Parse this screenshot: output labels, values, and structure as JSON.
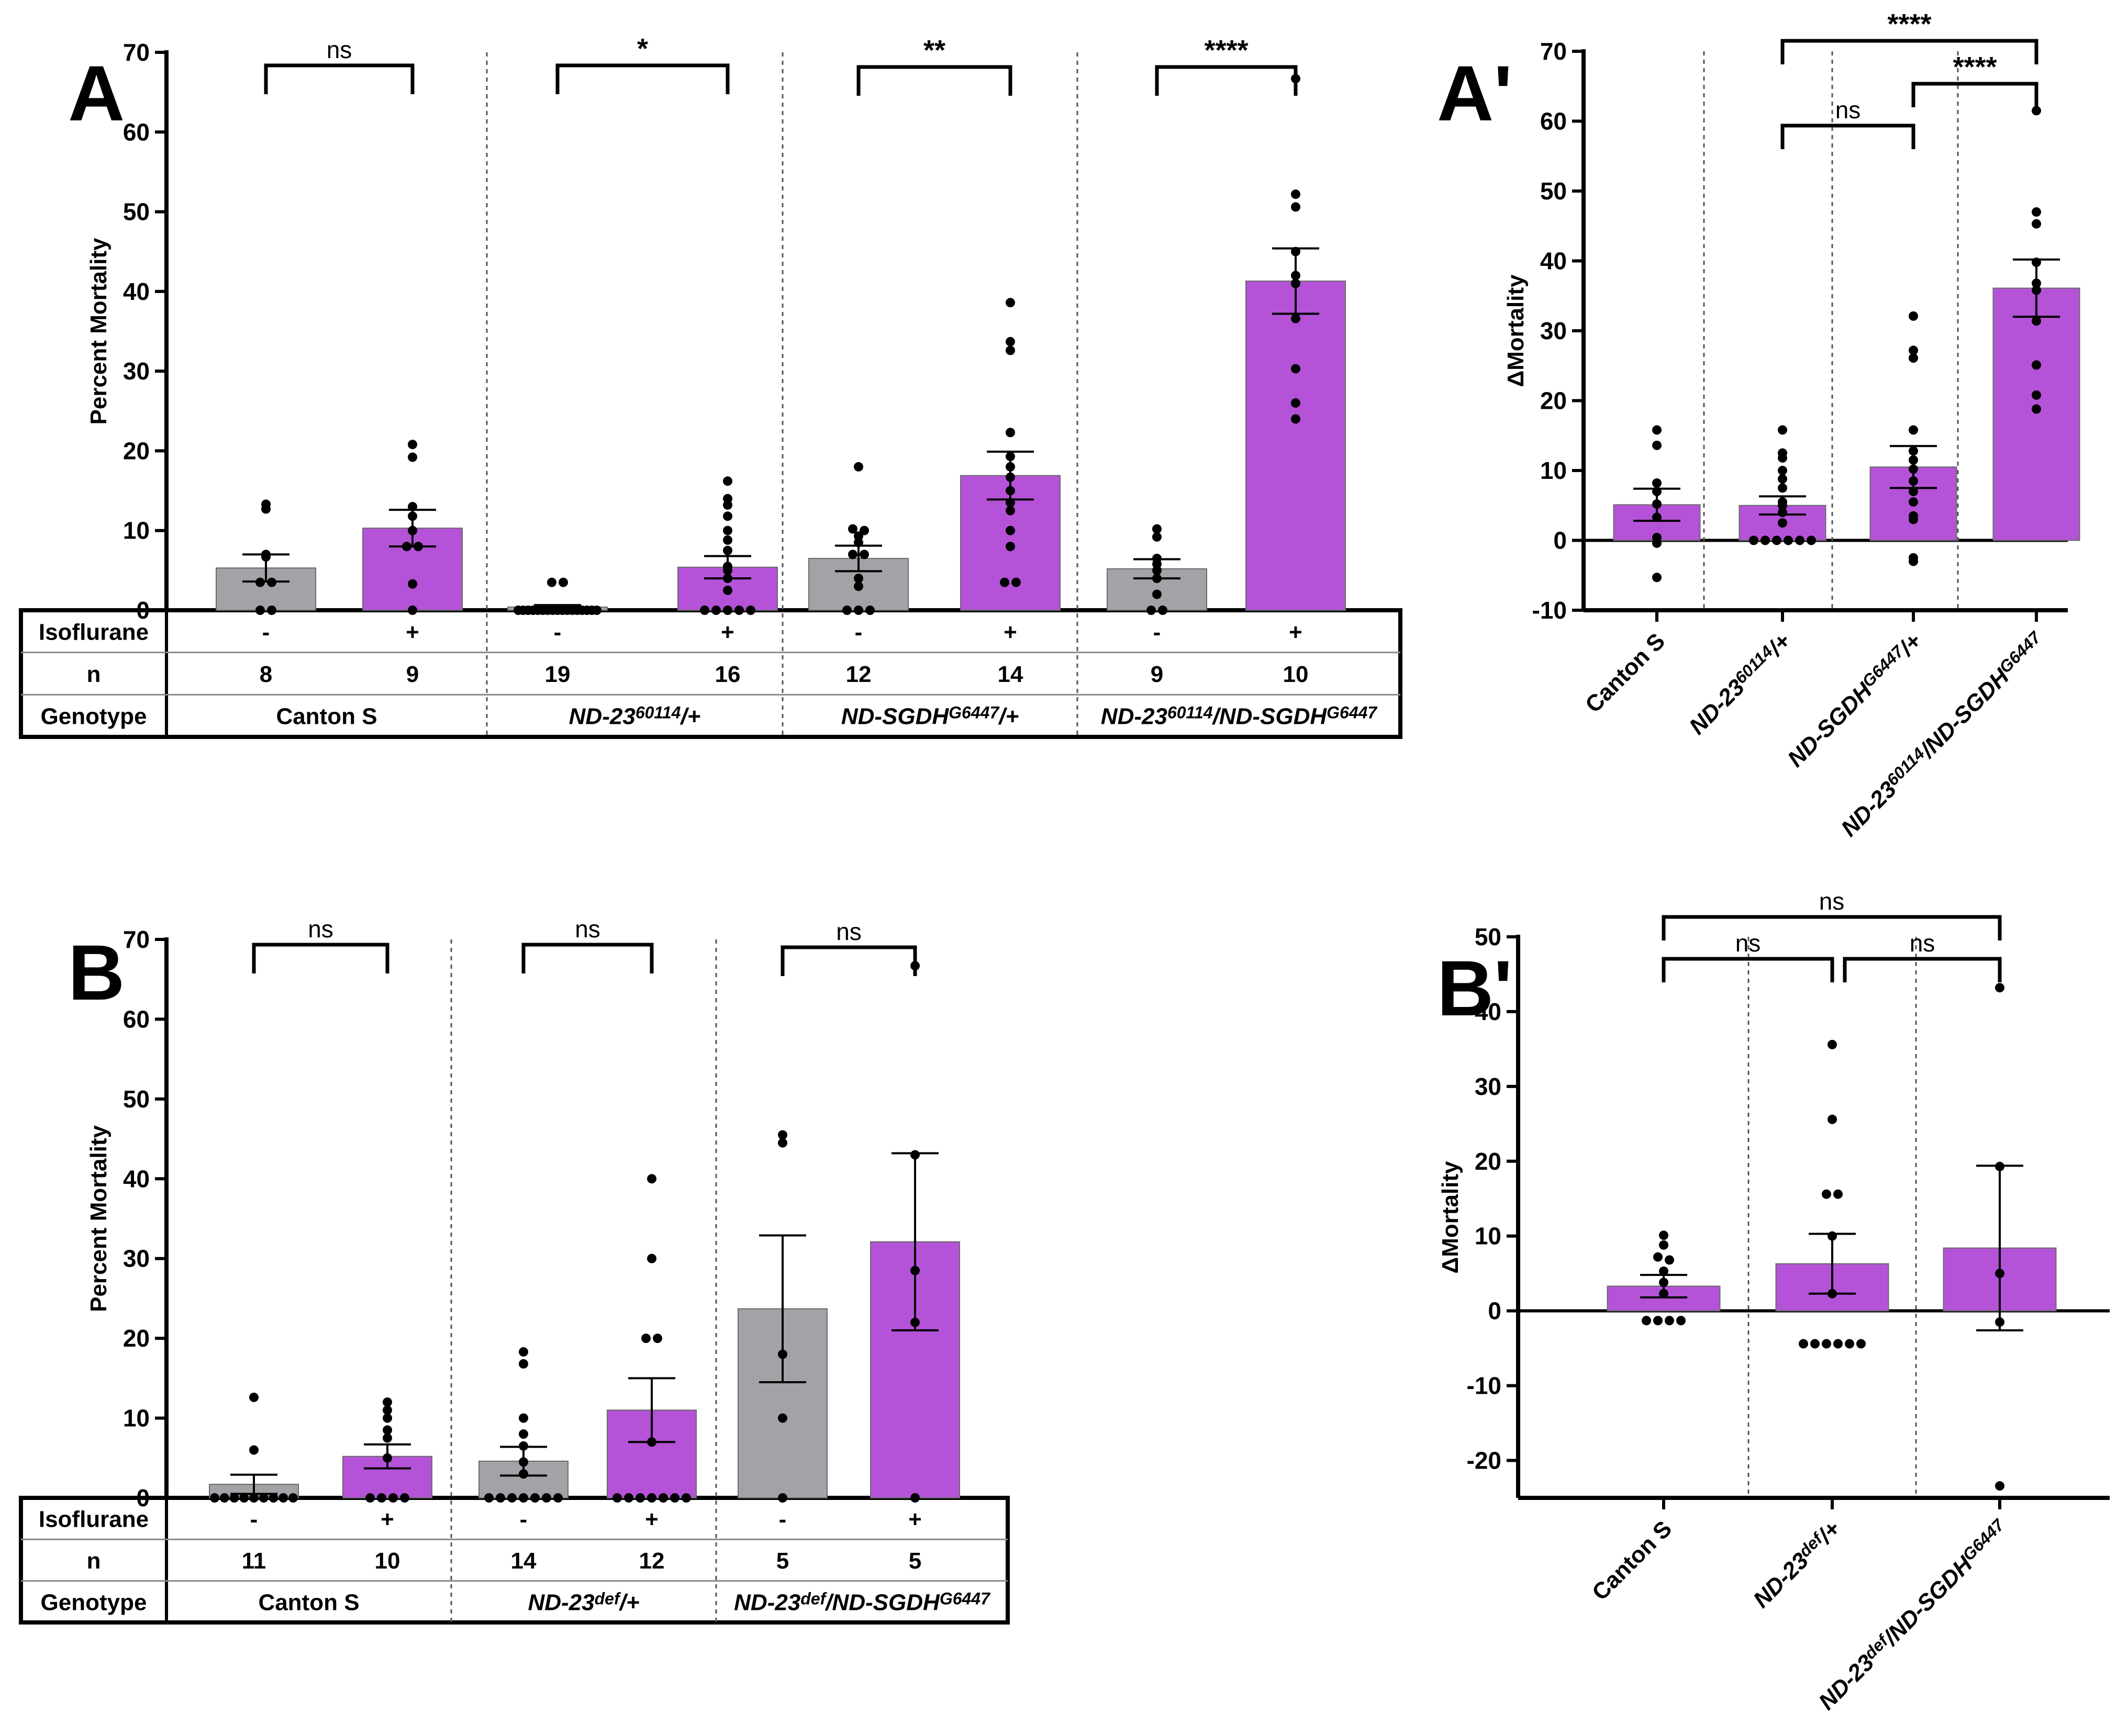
{
  "colors": {
    "control": "#a3a3a7",
    "isoflurane": "#b553d8",
    "axis": "#000000",
    "divider": "#555555"
  },
  "chart_data": [
    {
      "id": "A",
      "panel_label": "A",
      "type": "bar",
      "ylabel": "Percent Mortality",
      "ylim": [
        0,
        70
      ],
      "yticks": [
        0,
        10,
        20,
        30,
        40,
        50,
        60,
        70
      ],
      "table_labels": {
        "iso": "Isoflurane",
        "n": "n",
        "genotype": "Genotype"
      },
      "groups": [
        {
          "genotype": {
            "base": "Canton S",
            "sup": "",
            "mid": "",
            "sup2": "",
            "tail": ""
          },
          "bars": [
            {
              "iso": "-",
              "n": "8",
              "value": 5.3,
              "sem": 1.7,
              "points": [
                13.3,
                12.7,
                7.0,
                6.7,
                3.5,
                3.5,
                0,
                0
              ]
            },
            {
              "iso": "+",
              "n": "9",
              "value": 10.3,
              "sem": 2.3,
              "points": [
                20.8,
                19.2,
                13.0,
                11.8,
                10.0,
                8.0,
                8.0,
                3.3,
                0
              ]
            }
          ],
          "sig": {
            "label": "ns",
            "pair": [
              0,
              1
            ]
          }
        },
        {
          "genotype": {
            "base": "ND-23",
            "sup": "60114",
            "mid": "/+",
            "sup2": "",
            "tail": ""
          },
          "bars": [
            {
              "iso": "-",
              "n": "19",
              "value": 0.4,
              "sem": 0.25,
              "points": [
                3.5,
                3.5,
                0,
                0,
                0,
                0,
                0,
                0,
                0,
                0,
                0,
                0,
                0,
                0,
                0,
                0,
                0,
                0,
                0
              ]
            },
            {
              "iso": "+",
              "n": "16",
              "value": 5.4,
              "sem": 1.4,
              "points": [
                16.2,
                14.0,
                13.2,
                11.8,
                10.0,
                8.8,
                7.5,
                5.5,
                5.0,
                4.0,
                2.5,
                0,
                0,
                0,
                0,
                0
              ]
            }
          ],
          "sig": {
            "label": "*",
            "pair": [
              0,
              1
            ]
          }
        },
        {
          "genotype": {
            "base": "ND-SGDH",
            "sup": "G6447",
            "mid": "/+",
            "sup2": "",
            "tail": ""
          },
          "bars": [
            {
              "iso": "-",
              "n": "12",
              "value": 6.5,
              "sem": 1.6,
              "points": [
                18.0,
                10.2,
                10.0,
                9.3,
                8.5,
                7.0,
                7.0,
                4.0,
                3.0,
                0,
                0,
                0
              ]
            },
            {
              "iso": "+",
              "n": "14",
              "value": 16.9,
              "sem": 3.0,
              "points": [
                38.6,
                33.7,
                32.6,
                22.3,
                19.3,
                18.0,
                16.7,
                15.0,
                13.5,
                12.5,
                10.0,
                8.0,
                3.5,
                3.5
              ]
            }
          ],
          "sig": {
            "label": "**",
            "pair": [
              0,
              1
            ]
          }
        },
        {
          "genotype": {
            "base": "ND-23",
            "sup": "60114",
            "mid": "/ND-SGDH",
            "sup2": "G6447",
            "tail": ""
          },
          "bars": [
            {
              "iso": "-",
              "n": "9",
              "value": 5.2,
              "sem": 1.2,
              "points": [
                10.2,
                9.2,
                6.5,
                5.8,
                5.0,
                4.0,
                2.0,
                0,
                0
              ]
            },
            {
              "iso": "+",
              "n": "10",
              "value": 41.3,
              "sem": 4.1,
              "points": [
                66.7,
                52.2,
                50.6,
                45.0,
                42.0,
                41.0,
                36.6,
                30.3,
                26.0,
                24.0
              ]
            }
          ],
          "sig": {
            "label": "****",
            "pair": [
              0,
              1
            ]
          }
        }
      ]
    },
    {
      "id": "B",
      "panel_label": "B",
      "type": "bar",
      "ylabel": "Percent Mortality",
      "ylim": [
        0,
        70
      ],
      "yticks": [
        0,
        10,
        20,
        30,
        40,
        50,
        60,
        70
      ],
      "table_labels": {
        "iso": "Isoflurane",
        "n": "n",
        "genotype": "Genotype"
      },
      "groups": [
        {
          "genotype": {
            "base": "Canton S",
            "sup": "",
            "mid": "",
            "sup2": "",
            "tail": ""
          },
          "bars": [
            {
              "iso": "-",
              "n": "11",
              "value": 1.7,
              "sem": 1.2,
              "points": [
                12.6,
                6.0,
                0,
                0,
                0,
                0,
                0,
                0,
                0,
                0,
                0
              ]
            },
            {
              "iso": "+",
              "n": "10",
              "value": 5.2,
              "sem": 1.5,
              "points": [
                12.0,
                11.0,
                10.0,
                8.5,
                7.5,
                5.0,
                0,
                0,
                0,
                0
              ]
            }
          ],
          "sig": {
            "label": "ns",
            "pair": [
              0,
              1
            ]
          }
        },
        {
          "genotype": {
            "base": "ND-23",
            "sup": "def",
            "mid": "/+",
            "sup2": "",
            "tail": ""
          },
          "bars": [
            {
              "iso": "-",
              "n": "14",
              "value": 4.6,
              "sem": 1.8,
              "points": [
                18.3,
                16.8,
                10.0,
                8.0,
                6.5,
                4.5,
                3.0,
                0,
                0,
                0,
                0,
                0,
                0,
                0
              ]
            },
            {
              "iso": "+",
              "n": "12",
              "value": 11.0,
              "sem": 4.0,
              "points": [
                40.0,
                30.0,
                20.0,
                20.0,
                7.0,
                0,
                0,
                0,
                0,
                0,
                0,
                0
              ]
            }
          ],
          "sig": {
            "label": "ns",
            "pair": [
              0,
              1
            ]
          }
        },
        {
          "genotype": {
            "base": "ND-23",
            "sup": "def",
            "mid": "/ND-SGDH",
            "sup2": "G6447",
            "tail": ""
          },
          "bars": [
            {
              "iso": "-",
              "n": "5",
              "value": 23.7,
              "sem": 9.2,
              "points": [
                45.5,
                44.5,
                18.0,
                10.0,
                0
              ]
            },
            {
              "iso": "+",
              "n": "5",
              "value": 32.1,
              "sem": 11.1,
              "points": [
                66.7,
                43.0,
                28.5,
                22.0,
                0
              ]
            }
          ],
          "sig": {
            "label": "ns",
            "pair": [
              0,
              1
            ]
          }
        }
      ]
    },
    {
      "id": "A2",
      "panel_label": "A'",
      "type": "bar",
      "ylabel": "ΔMortality",
      "ylim": [
        -10,
        70
      ],
      "yticks": [
        -10,
        0,
        10,
        20,
        30,
        40,
        50,
        60,
        70
      ],
      "categories": [
        {
          "base": "Canton S",
          "sup": "",
          "mid": "",
          "sup2": "",
          "tail": ""
        },
        {
          "base": "ND-23",
          "sup": "60114",
          "mid": "/+",
          "sup2": "",
          "tail": ""
        },
        {
          "base": "ND-SGDH",
          "sup": "G6447",
          "mid": "/+",
          "sup2": "",
          "tail": ""
        },
        {
          "base": "ND-23",
          "sup": "60114",
          "mid": "/ND-SGDH",
          "sup2": "G6447",
          "tail": ""
        }
      ],
      "values": [
        5.1,
        5.0,
        10.5,
        36.1
      ],
      "sem": [
        2.3,
        1.3,
        3.0,
        4.1
      ],
      "points": [
        [
          15.8,
          13.6,
          8.2,
          7.0,
          5.2,
          3.3,
          0.4,
          -0.4,
          -5.3
        ],
        [
          15.8,
          12.5,
          11.8,
          10.0,
          8.8,
          7.5,
          5.5,
          5.0,
          4.0,
          2.5,
          0,
          0,
          0,
          0,
          0,
          0
        ],
        [
          32.1,
          27.2,
          26.1,
          15.8,
          12.8,
          11.5,
          10.2,
          8.5,
          7.0,
          5.5,
          3.5,
          3.0,
          -2.5,
          -3.0
        ],
        [
          61.5,
          47.0,
          45.3,
          39.8,
          36.8,
          35.8,
          31.4,
          25.1,
          20.8,
          18.8
        ]
      ],
      "comparisons": [
        {
          "pair": [
            1,
            2
          ],
          "label": "ns"
        },
        {
          "pair": [
            2,
            3
          ],
          "label": "****"
        },
        {
          "pair": [
            1,
            3
          ],
          "label": "****"
        }
      ]
    },
    {
      "id": "B2",
      "panel_label": "B'",
      "type": "bar",
      "ylabel": "ΔMortality",
      "ylim": [
        -25,
        50
      ],
      "yticks": [
        -20,
        -10,
        0,
        10,
        20,
        30,
        40,
        50
      ],
      "categories": [
        {
          "base": "Canton S",
          "sup": "",
          "mid": "",
          "sup2": "",
          "tail": ""
        },
        {
          "base": "ND-23",
          "sup": "def",
          "mid": "/+",
          "sup2": "",
          "tail": ""
        },
        {
          "base": "ND-23",
          "sup": "def",
          "mid": "/ND-SGDH",
          "sup2": "G6447",
          "tail": ""
        }
      ],
      "values": [
        3.3,
        6.3,
        8.4
      ],
      "sem": [
        1.5,
        4.0,
        11.0
      ],
      "points": [
        [
          10.1,
          8.8,
          7.2,
          6.8,
          5.3,
          3.8,
          2.3,
          -1.3,
          -1.3,
          -1.3,
          -1.3
        ],
        [
          35.6,
          25.6,
          15.6,
          15.6,
          10.0,
          2.3,
          -4.4,
          -4.4,
          -4.4,
          -4.4,
          -4.4,
          -4.4
        ],
        [
          43.2,
          19.3,
          5.0,
          -1.5,
          -23.4
        ]
      ],
      "comparisons": [
        {
          "pair": [
            0,
            1
          ],
          "label": "ns"
        },
        {
          "pair": [
            1,
            2
          ],
          "label": "ns"
        },
        {
          "pair": [
            0,
            2
          ],
          "label": "ns"
        }
      ]
    }
  ]
}
